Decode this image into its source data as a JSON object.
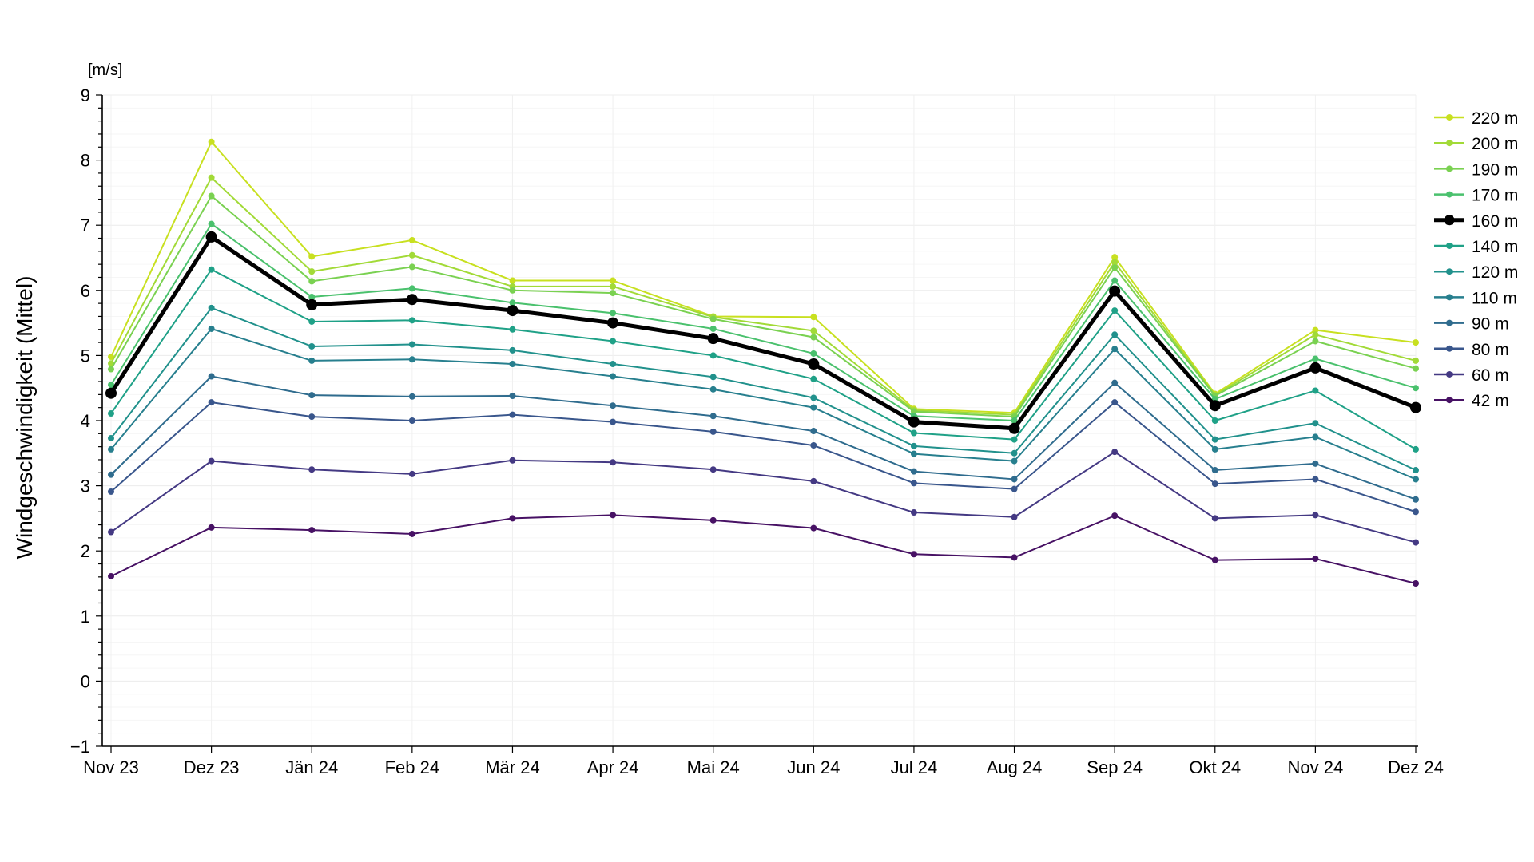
{
  "chart_data": {
    "type": "line",
    "title": "",
    "ylabel": "Windgeschwindigkeit (Mittel)",
    "yunit": "[m/s]",
    "xlabel": "",
    "ylim": [
      -1,
      9
    ],
    "yticks": [
      -1,
      0,
      1,
      2,
      3,
      4,
      5,
      6,
      7,
      8,
      9
    ],
    "ytick_labels": [
      "−1",
      "0",
      "1",
      "2",
      "3",
      "4",
      "5",
      "6",
      "7",
      "8",
      "9"
    ],
    "grid": true,
    "legend_position": "right",
    "categories": [
      "Nov 23",
      "Dez 23",
      "Jän 24",
      "Feb 24",
      "Mär 24",
      "Apr 24",
      "Mai 24",
      "Jun 24",
      "Jul 24",
      "Aug 24",
      "Sep 24",
      "Okt 24",
      "Nov 24",
      "Dez 24"
    ],
    "series": [
      {
        "name": "220 m",
        "color": "#c8e020",
        "highlight": false,
        "values": [
          4.98,
          8.28,
          6.52,
          6.77,
          6.15,
          6.15,
          5.6,
          5.59,
          4.18,
          4.12,
          6.51,
          4.41,
          5.39,
          5.2
        ]
      },
      {
        "name": "200 m",
        "color": "#a2da37",
        "highlight": false,
        "values": [
          4.88,
          7.73,
          6.29,
          6.54,
          6.06,
          6.06,
          5.59,
          5.38,
          4.16,
          4.09,
          6.43,
          4.39,
          5.32,
          4.92
        ]
      },
      {
        "name": "190 m",
        "color": "#7ad151",
        "highlight": false,
        "values": [
          4.79,
          7.45,
          6.14,
          6.36,
          6.0,
          5.96,
          5.56,
          5.28,
          4.14,
          4.06,
          6.35,
          4.38,
          5.22,
          4.8
        ]
      },
      {
        "name": "170 m",
        "color": "#4ac16d",
        "highlight": false,
        "values": [
          4.55,
          7.02,
          5.9,
          6.03,
          5.81,
          5.65,
          5.41,
          5.03,
          4.07,
          4.0,
          6.15,
          4.33,
          4.95,
          4.5
        ]
      },
      {
        "name": "160 m",
        "color": "#000000",
        "highlight": true,
        "values": [
          4.42,
          6.82,
          5.78,
          5.86,
          5.69,
          5.5,
          5.26,
          4.87,
          3.98,
          3.88,
          5.99,
          4.23,
          4.81,
          4.2
        ]
      },
      {
        "name": "140 m",
        "color": "#1fa187",
        "highlight": false,
        "values": [
          4.11,
          6.32,
          5.52,
          5.54,
          5.4,
          5.22,
          5.0,
          4.64,
          3.81,
          3.71,
          5.69,
          4.0,
          4.46,
          3.56
        ]
      },
      {
        "name": "120 m",
        "color": "#21918c",
        "highlight": false,
        "values": [
          3.73,
          5.73,
          5.14,
          5.17,
          5.08,
          4.87,
          4.67,
          4.35,
          3.61,
          3.5,
          5.32,
          3.71,
          3.96,
          3.24
        ]
      },
      {
        "name": "110 m",
        "color": "#277f8e",
        "highlight": false,
        "values": [
          3.56,
          5.41,
          4.92,
          4.94,
          4.87,
          4.68,
          4.48,
          4.2,
          3.49,
          3.38,
          5.1,
          3.56,
          3.75,
          3.1
        ]
      },
      {
        "name": "90 m",
        "color": "#2f6c8e",
        "highlight": false,
        "values": [
          3.17,
          4.68,
          4.39,
          4.37,
          4.38,
          4.23,
          4.07,
          3.84,
          3.22,
          3.1,
          4.58,
          3.24,
          3.34,
          2.79
        ]
      },
      {
        "name": "80 m",
        "color": "#39568c",
        "highlight": false,
        "values": [
          2.91,
          4.28,
          4.06,
          4.0,
          4.09,
          3.98,
          3.83,
          3.62,
          3.04,
          2.95,
          4.28,
          3.03,
          3.1,
          2.6
        ]
      },
      {
        "name": "60 m",
        "color": "#443983",
        "highlight": false,
        "values": [
          2.29,
          3.38,
          3.25,
          3.18,
          3.39,
          3.36,
          3.25,
          3.07,
          2.59,
          2.52,
          3.52,
          2.5,
          2.55,
          2.13
        ]
      },
      {
        "name": "42 m",
        "color": "#471164",
        "highlight": false,
        "values": [
          1.61,
          2.36,
          2.32,
          2.26,
          2.5,
          2.55,
          2.47,
          2.35,
          1.95,
          1.9,
          2.54,
          1.86,
          1.88,
          1.5
        ]
      }
    ]
  }
}
